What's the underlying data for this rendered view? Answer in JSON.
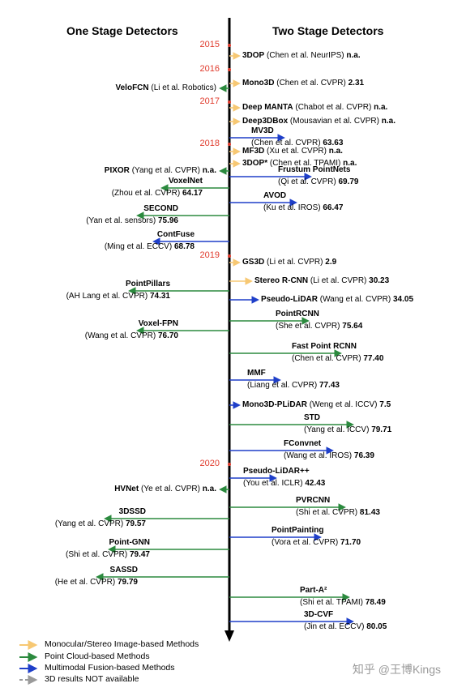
{
  "headers": {
    "left": "One Stage Detectors",
    "right": "Two Stage Detectors"
  },
  "years": [
    "2015",
    "2016",
    "2017",
    "2018",
    "2019",
    "2020"
  ],
  "colors": {
    "monocular": "#f7c873",
    "point_cloud": "#2b8a3e",
    "fusion": "#1f3fc9",
    "na": "#9a9a9a",
    "year": "#e03a2c",
    "axis": "#000000"
  },
  "entries": [
    {
      "side": "right",
      "type": "monocular",
      "name": "3DOP",
      "ref": "(Chen et al. NeurIPS)",
      "score": "n.a."
    },
    {
      "side": "right",
      "type": "monocular",
      "name": "Mono3D",
      "ref": "(Chen et al. CVPR)",
      "score": "2.31"
    },
    {
      "side": "left",
      "type": "point_cloud",
      "name": "VeloFCN",
      "ref": "(Li et al. Robotics)",
      "score": ""
    },
    {
      "side": "right",
      "type": "monocular",
      "name": "Deep MANTA",
      "ref": "(Chabot et al. CVPR)",
      "score": "n.a."
    },
    {
      "side": "right",
      "type": "monocular",
      "name": "Deep3DBox",
      "ref": "(Mousavian et al. CVPR)",
      "score": "n.a."
    },
    {
      "side": "right",
      "type": "fusion",
      "name": "MV3D",
      "ref": "(Chen et al. CVPR)",
      "score": "63.63"
    },
    {
      "side": "right",
      "type": "monocular",
      "name": "MF3D",
      "ref": "(Xu et al. CVPR)",
      "score": "n.a."
    },
    {
      "side": "right",
      "type": "monocular",
      "name": "3DOP*",
      "ref": "(Chen et al. TPAMI)",
      "score": "n.a."
    },
    {
      "side": "left",
      "type": "point_cloud",
      "name": "PIXOR",
      "ref": "(Yang et al. CVPR)",
      "score": "n.a."
    },
    {
      "side": "right",
      "type": "fusion",
      "name": "Frustum PointNets",
      "ref": "(Qi et al. CVPR)",
      "score": "69.79"
    },
    {
      "side": "left",
      "type": "point_cloud",
      "name": "VoxelNet",
      "ref": "(Zhou et al. CVPR)",
      "score": "64.17"
    },
    {
      "side": "right",
      "type": "fusion",
      "name": "AVOD",
      "ref": "(Ku et al. IROS)",
      "score": "66.47"
    },
    {
      "side": "left",
      "type": "point_cloud",
      "name": "SECOND",
      "ref": "(Yan et al. sensors)",
      "score": "75.96"
    },
    {
      "side": "left",
      "type": "fusion",
      "name": "ContFuse",
      "ref": "(Ming et al. ECCV)",
      "score": "68.78"
    },
    {
      "side": "right",
      "type": "monocular",
      "name": "GS3D",
      "ref": "(Li et al. CVPR)",
      "score": "2.9"
    },
    {
      "side": "right",
      "type": "monocular",
      "name": "Stereo R-CNN",
      "ref": "(Li et al. CVPR)",
      "score": "30.23"
    },
    {
      "side": "left",
      "type": "point_cloud",
      "name": "PointPillars",
      "ref": "(AH Lang et al. CVPR)",
      "score": "74.31"
    },
    {
      "side": "right",
      "type": "fusion",
      "name": "Pseudo-LiDAR",
      "ref": "(Wang et al. CVPR)",
      "score": "34.05"
    },
    {
      "side": "left",
      "type": "point_cloud",
      "name": "Voxel-FPN",
      "ref": "(Wang et al. CVPR)",
      "score": "76.70"
    },
    {
      "side": "right",
      "type": "point_cloud",
      "name": "PointRCNN",
      "ref": "(She et al. CVPR)",
      "score": "75.64"
    },
    {
      "side": "right",
      "type": "point_cloud",
      "name": "Fast Point RCNN",
      "ref": "(Chen et al. CVPR)",
      "score": "77.40"
    },
    {
      "side": "right",
      "type": "fusion",
      "name": "MMF",
      "ref": "(Liang et al. CVPR)",
      "score": "77.43"
    },
    {
      "side": "right",
      "type": "fusion",
      "name": "Mono3D-PLiDAR",
      "ref": "(Weng et al. ICCV)",
      "score": "7.5"
    },
    {
      "side": "right",
      "type": "point_cloud",
      "name": "STD",
      "ref": "(Yang et al. ICCV)",
      "score": "79.71"
    },
    {
      "side": "right",
      "type": "fusion",
      "name": "FConvnet",
      "ref": "(Wang et al. IROS)",
      "score": "76.39"
    },
    {
      "side": "right",
      "type": "fusion",
      "name": "Pseudo-LiDAR++",
      "ref": "(You et al. ICLR)",
      "score": "42.43"
    },
    {
      "side": "left",
      "type": "point_cloud",
      "name": "HVNet",
      "ref": "(Ye et al. CVPR)",
      "score": "n.a."
    },
    {
      "side": "right",
      "type": "point_cloud",
      "name": "PVRCNN",
      "ref": "(Shi et al. CVPR)",
      "score": "81.43"
    },
    {
      "side": "left",
      "type": "point_cloud",
      "name": "3DSSD",
      "ref": "(Yang et al. CVPR)",
      "score": "79.57"
    },
    {
      "side": "right",
      "type": "fusion",
      "name": "PointPainting",
      "ref": "(Vora et al. CVPR)",
      "score": "71.70"
    },
    {
      "side": "left",
      "type": "point_cloud",
      "name": "Point-GNN",
      "ref": "(Shi et al. CVPR)",
      "score": "79.47"
    },
    {
      "side": "left",
      "type": "point_cloud",
      "name": "SASSD",
      "ref": "(He et al. CVPR)",
      "score": "79.79"
    },
    {
      "side": "right",
      "type": "point_cloud",
      "name": "Part-A²",
      "ref": "(Shi et al. TPAMI)",
      "score": "78.49"
    },
    {
      "side": "right",
      "type": "fusion",
      "name": "3D-CVF",
      "ref": "(Jin et al. ECCV)",
      "score": "80.05"
    }
  ],
  "legend": [
    {
      "type": "monocular",
      "label": "Monocular/Stereo Image-based Methods"
    },
    {
      "type": "point_cloud",
      "label": "Point Cloud-based Methods"
    },
    {
      "type": "fusion",
      "label": "Multimodal Fusion-based Methods"
    },
    {
      "type": "na",
      "label": "3D results NOT available"
    }
  ],
  "watermark": "知乎 @王博Kings"
}
